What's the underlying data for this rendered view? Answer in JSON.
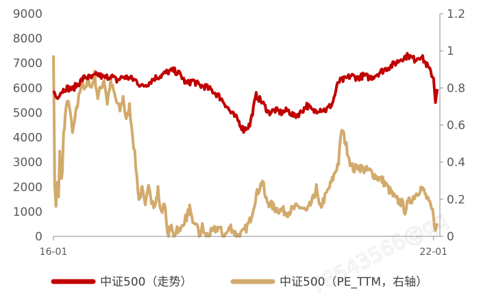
{
  "chart_data": {
    "type": "line",
    "left_axis": {
      "range": [
        0,
        9000
      ],
      "ticks": [
        "0",
        "1000",
        "2000",
        "3000",
        "4000",
        "5000",
        "6000",
        "7000",
        "8000",
        "9000"
      ]
    },
    "right_axis": {
      "range": [
        0,
        1.2
      ],
      "ticks": [
        "0",
        "0.2",
        "0.4",
        "0.6",
        "0.8",
        "1",
        "1.2"
      ]
    },
    "x_ticks": [
      {
        "label": "16-01",
        "x": 2016.0
      },
      {
        "label": "22-01",
        "x": 2022.0
      }
    ],
    "x_range": [
      2016.0,
      2022.1
    ],
    "grid": false,
    "legend_position": "bottom",
    "series": [
      {
        "name": "中证500（走势）",
        "axis": "left",
        "color": "#c00000",
        "points": [
          [
            2016.0,
            5900
          ],
          [
            2016.05,
            5600
          ],
          [
            2016.1,
            5800
          ],
          [
            2016.2,
            6000
          ],
          [
            2016.3,
            5950
          ],
          [
            2016.4,
            6200
          ],
          [
            2016.5,
            6450
          ],
          [
            2016.6,
            6400
          ],
          [
            2016.7,
            6550
          ],
          [
            2016.8,
            6400
          ],
          [
            2016.9,
            6500
          ],
          [
            2017.0,
            6300
          ],
          [
            2017.1,
            6450
          ],
          [
            2017.2,
            6400
          ],
          [
            2017.3,
            6300
          ],
          [
            2017.4,
            6050
          ],
          [
            2017.5,
            6200
          ],
          [
            2017.6,
            6400
          ],
          [
            2017.7,
            6500
          ],
          [
            2017.8,
            6650
          ],
          [
            2017.9,
            6700
          ],
          [
            2018.0,
            6550
          ],
          [
            2018.1,
            6150
          ],
          [
            2018.2,
            6300
          ],
          [
            2018.3,
            6100
          ],
          [
            2018.4,
            6050
          ],
          [
            2018.5,
            5900
          ],
          [
            2018.6,
            5700
          ],
          [
            2018.7,
            5400
          ],
          [
            2018.8,
            5000
          ],
          [
            2018.9,
            4750
          ],
          [
            2019.0,
            4300
          ],
          [
            2019.1,
            4500
          ],
          [
            2019.2,
            5700
          ],
          [
            2019.3,
            5400
          ],
          [
            2019.4,
            5000
          ],
          [
            2019.5,
            5100
          ],
          [
            2019.6,
            5000
          ],
          [
            2019.7,
            5100
          ],
          [
            2019.8,
            4850
          ],
          [
            2019.9,
            5000
          ],
          [
            2020.0,
            5300
          ],
          [
            2020.1,
            5050
          ],
          [
            2020.2,
            5150
          ],
          [
            2020.3,
            5100
          ],
          [
            2020.4,
            5350
          ],
          [
            2020.5,
            6250
          ],
          [
            2020.6,
            6350
          ],
          [
            2020.7,
            6500
          ],
          [
            2020.8,
            6400
          ],
          [
            2020.9,
            6500
          ],
          [
            2021.0,
            6400
          ],
          [
            2021.1,
            6550
          ],
          [
            2021.2,
            6700
          ],
          [
            2021.3,
            6850
          ],
          [
            2021.4,
            7000
          ],
          [
            2021.5,
            7200
          ],
          [
            2021.6,
            7300
          ],
          [
            2021.7,
            7150
          ],
          [
            2021.8,
            7300
          ],
          [
            2021.9,
            6900
          ],
          [
            2022.0,
            6400
          ],
          [
            2022.03,
            5500
          ],
          [
            2022.06,
            5950
          ]
        ]
      },
      {
        "name": "中证500（PE_TTM，右轴）",
        "axis": "right",
        "color": "#d2aa6c",
        "points": [
          [
            2016.0,
            1.0
          ],
          [
            2016.02,
            0.3
          ],
          [
            2016.04,
            0.15
          ],
          [
            2016.06,
            0.3
          ],
          [
            2016.08,
            0.2
          ],
          [
            2016.1,
            0.45
          ],
          [
            2016.12,
            0.3
          ],
          [
            2016.14,
            0.35
          ],
          [
            2016.16,
            0.55
          ],
          [
            2016.2,
            0.7
          ],
          [
            2016.25,
            0.72
          ],
          [
            2016.3,
            0.55
          ],
          [
            2016.35,
            0.65
          ],
          [
            2016.4,
            0.75
          ],
          [
            2016.45,
            0.85
          ],
          [
            2016.5,
            0.78
          ],
          [
            2016.55,
            0.85
          ],
          [
            2016.6,
            0.8
          ],
          [
            2016.65,
            0.87
          ],
          [
            2016.7,
            0.75
          ],
          [
            2016.75,
            0.8
          ],
          [
            2016.8,
            0.85
          ],
          [
            2016.85,
            0.72
          ],
          [
            2016.9,
            0.83
          ],
          [
            2016.95,
            0.78
          ],
          [
            2017.0,
            0.72
          ],
          [
            2017.05,
            0.68
          ],
          [
            2017.1,
            0.75
          ],
          [
            2017.15,
            0.62
          ],
          [
            2017.2,
            0.7
          ],
          [
            2017.25,
            0.55
          ],
          [
            2017.3,
            0.38
          ],
          [
            2017.35,
            0.2
          ],
          [
            2017.4,
            0.25
          ],
          [
            2017.45,
            0.15
          ],
          [
            2017.5,
            0.3
          ],
          [
            2017.55,
            0.2
          ],
          [
            2017.6,
            0.15
          ],
          [
            2017.65,
            0.25
          ],
          [
            2017.7,
            0.12
          ],
          [
            2017.75,
            0.2
          ],
          [
            2017.8,
            0.0
          ],
          [
            2017.85,
            0.05
          ],
          [
            2017.9,
            0.0
          ],
          [
            2017.95,
            0.05
          ],
          [
            2018.0,
            0.02
          ],
          [
            2018.05,
            0.08
          ],
          [
            2018.1,
            0.1
          ],
          [
            2018.15,
            0.15
          ],
          [
            2018.2,
            0.05
          ],
          [
            2018.25,
            0.08
          ],
          [
            2018.3,
            0.0
          ],
          [
            2018.35,
            0.05
          ],
          [
            2018.4,
            0.0
          ],
          [
            2018.5,
            0.02
          ],
          [
            2018.6,
            0.05
          ],
          [
            2018.7,
            0.0
          ],
          [
            2018.8,
            0.05
          ],
          [
            2018.9,
            0.0
          ],
          [
            2019.0,
            0.02
          ],
          [
            2019.1,
            0.08
          ],
          [
            2019.2,
            0.22
          ],
          [
            2019.3,
            0.3
          ],
          [
            2019.35,
            0.2
          ],
          [
            2019.4,
            0.18
          ],
          [
            2019.5,
            0.15
          ],
          [
            2019.6,
            0.14
          ],
          [
            2019.7,
            0.13
          ],
          [
            2019.8,
            0.15
          ],
          [
            2019.9,
            0.16
          ],
          [
            2020.0,
            0.13
          ],
          [
            2020.1,
            0.2
          ],
          [
            2020.15,
            0.26
          ],
          [
            2020.2,
            0.15
          ],
          [
            2020.3,
            0.22
          ],
          [
            2020.4,
            0.3
          ],
          [
            2020.5,
            0.4
          ],
          [
            2020.55,
            0.58
          ],
          [
            2020.6,
            0.52
          ],
          [
            2020.65,
            0.45
          ],
          [
            2020.7,
            0.38
          ],
          [
            2020.75,
            0.36
          ],
          [
            2020.8,
            0.38
          ],
          [
            2020.9,
            0.36
          ],
          [
            2021.0,
            0.35
          ],
          [
            2021.1,
            0.32
          ],
          [
            2021.2,
            0.3
          ],
          [
            2021.3,
            0.25
          ],
          [
            2021.4,
            0.2
          ],
          [
            2021.5,
            0.18
          ],
          [
            2021.55,
            0.14
          ],
          [
            2021.6,
            0.18
          ],
          [
            2021.7,
            0.22
          ],
          [
            2021.8,
            0.26
          ],
          [
            2021.85,
            0.24
          ],
          [
            2021.9,
            0.2
          ],
          [
            2022.0,
            0.12
          ],
          [
            2022.03,
            0.02
          ],
          [
            2022.06,
            0.07
          ]
        ]
      }
    ]
  },
  "legend": [
    {
      "label": "中证500（走势）",
      "color": "#c00000"
    },
    {
      "label": "中证500（PE_TTM，右轴）",
      "color": "#d2aa6c"
    }
  ],
  "watermark": "78543566@qq"
}
